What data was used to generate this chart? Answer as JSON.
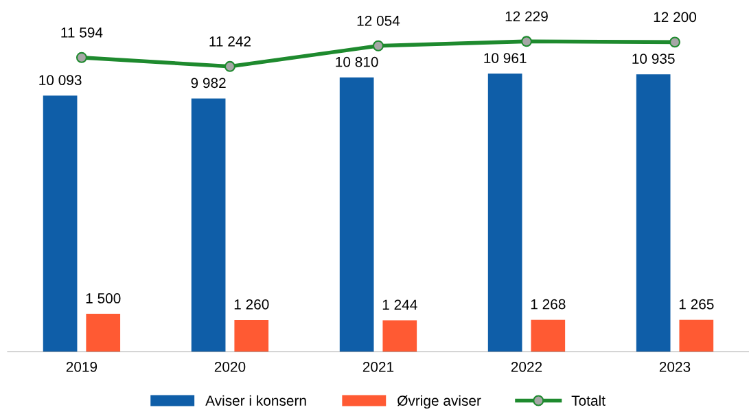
{
  "chart_data": {
    "type": "bar",
    "categories": [
      "2019",
      "2020",
      "2021",
      "2022",
      "2023"
    ],
    "series": [
      {
        "name": "Aviser i konsern",
        "color": "#0f5ea8",
        "values": [
          10093,
          9982,
          10810,
          10961,
          10935
        ],
        "value_labels": [
          "10 093",
          "9 982",
          "10 810",
          "10 961",
          "10 935"
        ]
      },
      {
        "name": "Øvrige aviser",
        "color": "#ff5a33",
        "values": [
          1500,
          1260,
          1244,
          1268,
          1265
        ],
        "value_labels": [
          "1 500",
          "1 260",
          "1 244",
          "1 268",
          "1 265"
        ]
      },
      {
        "name": "Totalt",
        "type": "line",
        "color": "#1e8a2e",
        "marker": "circle",
        "values": [
          11594,
          11242,
          12054,
          12229,
          12200
        ],
        "value_labels": [
          "11 594",
          "11 242",
          "12 054",
          "12 229",
          "12 200"
        ]
      }
    ],
    "legend": "bottom",
    "grid": false
  }
}
